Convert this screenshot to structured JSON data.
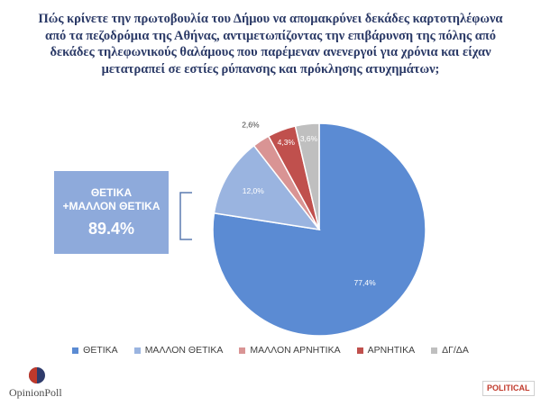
{
  "question": {
    "lines": [
      "Πώς κρίνετε την πρωτοβουλία του Δήμου να απομακρύνει δεκάδες καρτοτηλέφωνα",
      "από τα πεζοδρόμια της Αθήνας, αντιμετωπίζοντας την επιβάρυνση της πόλης από",
      "δεκάδες τηλεφωνικούς θαλάμους που παρέμεναν ανενεργοί για χρόνια και είχαν",
      "μετατραπεί σε εστίες ρύπανσης και πρόκλησης ατυχημάτων;"
    ]
  },
  "chart_data": {
    "type": "pie",
    "title": "",
    "slices": [
      {
        "label": "ΘΕΤΙΚΑ",
        "value": 77.4,
        "display": "77,4%",
        "color": "#5b8bd3"
      },
      {
        "label": "ΜΑΛΛΟΝ ΘΕΤΙΚΑ",
        "value": 12.0,
        "display": "12,0%",
        "color": "#9ab4e0"
      },
      {
        "label": "ΜΑΛΛΟΝ ΑΡΝΗΤΙΚΑ",
        "value": 2.6,
        "display": "2,6%",
        "color": "#d99494"
      },
      {
        "label": "ΑΡΝΗΤΙΚΑ",
        "value": 4.3,
        "display": "4,3%",
        "color": "#c0504d"
      },
      {
        "label": "ΔΓ/ΔΑ",
        "value": 3.6,
        "display": "3,6%",
        "color": "#bfbfbf"
      }
    ],
    "legend_position": "bottom"
  },
  "summary": {
    "line1": "ΘΕΤΙΚΑ",
    "line2": "+ΜΑΛΛΟΝ ΘΕΤΙΚΑ",
    "value": "89.4%"
  },
  "logos": {
    "opinion_poll": "OpinionPoll",
    "political": "POLITICAL"
  }
}
